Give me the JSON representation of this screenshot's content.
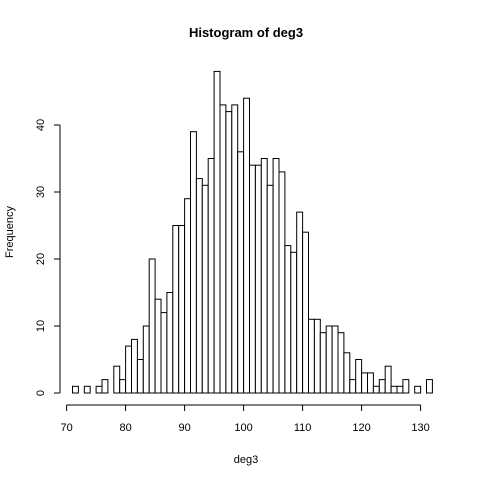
{
  "chart_data": {
    "type": "bar",
    "title": "Histogram of deg3",
    "xlabel": "deg3",
    "ylabel": "Frequency",
    "bin_width": 1,
    "bin_start": 71,
    "values": [
      1,
      0,
      1,
      0,
      1,
      2,
      0,
      4,
      2,
      7,
      8,
      5,
      10,
      20,
      14,
      12,
      15,
      25,
      25,
      29,
      39,
      32,
      31,
      35,
      48,
      43,
      42,
      43,
      36,
      44,
      34,
      34,
      35,
      31,
      35,
      33,
      22,
      21,
      27,
      24,
      11,
      11,
      9,
      10,
      10,
      9,
      6,
      2,
      5,
      3,
      3,
      1,
      2,
      4,
      1,
      1,
      2,
      0,
      1,
      0,
      2
    ],
    "xlim": [
      71,
      132
    ],
    "ylim": [
      0,
      48
    ],
    "x_ticks": [
      "70",
      "80",
      "90",
      "100",
      "110",
      "120",
      "130"
    ],
    "y_ticks": [
      "0",
      "10",
      "20",
      "30",
      "40"
    ],
    "grid": false,
    "legend": false
  }
}
